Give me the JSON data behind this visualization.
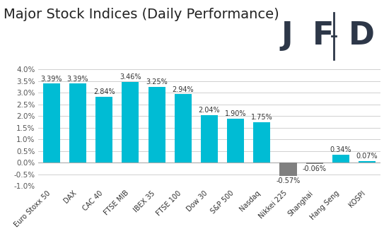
{
  "title": "Major Stock Indices (Daily Performance)",
  "categories": [
    "Euro Stoxx 50",
    "DAX",
    "CAC 40",
    "FTSE MIB",
    "IBEX 35",
    "FTSE 100",
    "Dow 30",
    "S&P 500",
    "Nasdaq",
    "Nikkei 225",
    "Shanghai",
    "Hang Seng",
    "KOSPI"
  ],
  "values": [
    3.39,
    3.39,
    2.84,
    3.46,
    3.25,
    2.94,
    2.04,
    1.9,
    1.75,
    -0.57,
    -0.06,
    0.34,
    0.07
  ],
  "bar_colors": [
    "#00bcd4",
    "#00bcd4",
    "#00bcd4",
    "#00bcd4",
    "#00bcd4",
    "#00bcd4",
    "#00bcd4",
    "#00bcd4",
    "#00bcd4",
    "#808080",
    "#808080",
    "#00bcd4",
    "#00bcd4"
  ],
  "ylim": [
    -1.0,
    4.0
  ],
  "yticks": [
    -1.0,
    -0.5,
    0.0,
    0.5,
    1.0,
    1.5,
    2.0,
    2.5,
    3.0,
    3.5,
    4.0
  ],
  "ytick_labels": [
    "-1.0%",
    "-0.5%",
    "0.0%",
    "0.5%",
    "1.0%",
    "1.5%",
    "2.0%",
    "2.5%",
    "3.0%",
    "3.5%",
    "4.0%"
  ],
  "background_color": "#ffffff",
  "grid_color": "#d0d0d0",
  "title_fontsize": 14,
  "label_fontsize": 7,
  "tick_fontsize": 7.5,
  "value_fontsize": 7,
  "jfd_color": "#2d3748",
  "bar_width": 0.65
}
